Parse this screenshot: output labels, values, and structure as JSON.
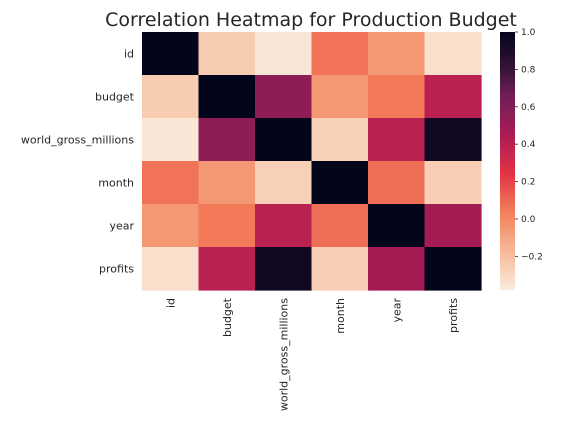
{
  "chart_data": {
    "type": "heatmap",
    "title": "Correlation Heatmap for Production Budget",
    "rows": [
      "id",
      "budget",
      "world_gross_millions",
      "month",
      "year",
      "profits"
    ],
    "columns": [
      "id",
      "budget",
      "world_gross_millions",
      "month",
      "year",
      "profits"
    ],
    "values": [
      [
        1.0,
        -0.25,
        -0.36,
        0.07,
        -0.05,
        -0.33
      ],
      [
        -0.25,
        1.0,
        0.55,
        -0.05,
        0.05,
        0.4
      ],
      [
        -0.36,
        0.55,
        1.0,
        -0.27,
        0.4,
        0.95
      ],
      [
        0.07,
        -0.05,
        -0.27,
        1.0,
        0.08,
        -0.26
      ],
      [
        -0.05,
        0.05,
        0.4,
        0.08,
        1.0,
        0.48
      ],
      [
        -0.33,
        0.4,
        0.95,
        -0.26,
        0.48,
        1.0
      ]
    ],
    "colorbar": {
      "ticks": [
        1.0,
        0.8,
        0.6,
        0.4,
        0.2,
        0.0,
        -0.2
      ],
      "tick_labels": [
        "1.0",
        "0.8",
        "0.6",
        "0.4",
        "0.2",
        "0.0",
        "−0.2"
      ],
      "range": [
        -0.38,
        1.0
      ]
    },
    "colormap": "rocket_r",
    "grid": false,
    "legend": "colorbar-right"
  }
}
